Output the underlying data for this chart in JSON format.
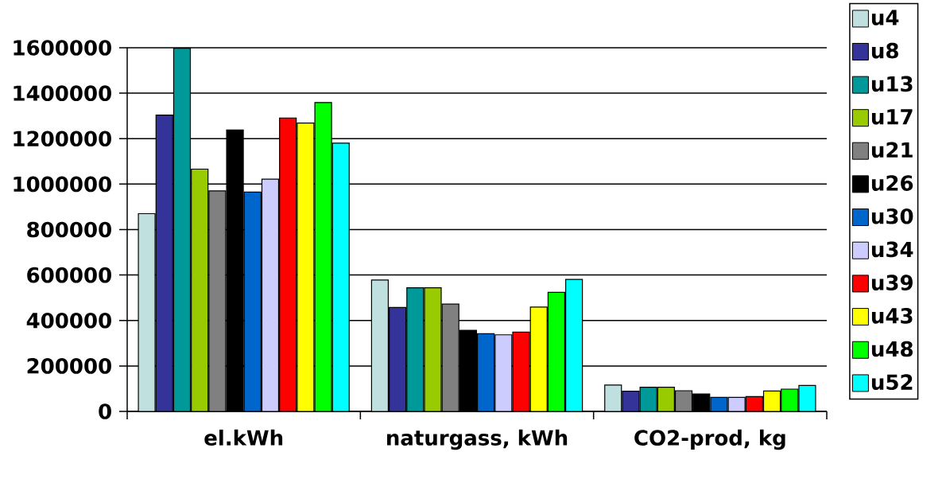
{
  "chart_data": {
    "type": "bar",
    "categories": [
      "el.kWh",
      "naturgass, kWh",
      "CO2-prod, kg"
    ],
    "series": [
      {
        "name": "u4",
        "color": "#c0e0e0",
        "values": [
          870000,
          578000,
          116000
        ]
      },
      {
        "name": "u8",
        "color": "#333399",
        "values": [
          1304000,
          457000,
          89000
        ]
      },
      {
        "name": "u13",
        "color": "#009999",
        "values": [
          1598000,
          544000,
          106000
        ]
      },
      {
        "name": "u17",
        "color": "#99cc00",
        "values": [
          1066000,
          544000,
          106000
        ]
      },
      {
        "name": "u21",
        "color": "#808080",
        "values": [
          970000,
          472000,
          91000
        ]
      },
      {
        "name": "u26",
        "color": "#000000",
        "values": [
          1238000,
          357000,
          77000
        ]
      },
      {
        "name": "u30",
        "color": "#0066cc",
        "values": [
          965000,
          342000,
          62000
        ]
      },
      {
        "name": "u34",
        "color": "#ccccff",
        "values": [
          1022000,
          337000,
          62000
        ]
      },
      {
        "name": "u39",
        "color": "#ff0000",
        "values": [
          1291000,
          349000,
          65000
        ]
      },
      {
        "name": "u43",
        "color": "#ffff00",
        "values": [
          1269000,
          459000,
          90000
        ]
      },
      {
        "name": "u48",
        "color": "#00ff00",
        "values": [
          1359000,
          524000,
          98000
        ]
      },
      {
        "name": "u52",
        "color": "#00ffff",
        "values": [
          1180000,
          581000,
          114000
        ]
      }
    ],
    "ylim": [
      0,
      1600000
    ],
    "yticks": [
      0,
      200000,
      400000,
      600000,
      800000,
      1000000,
      1200000,
      1400000,
      1600000
    ],
    "grid": "y",
    "legend": "right"
  }
}
